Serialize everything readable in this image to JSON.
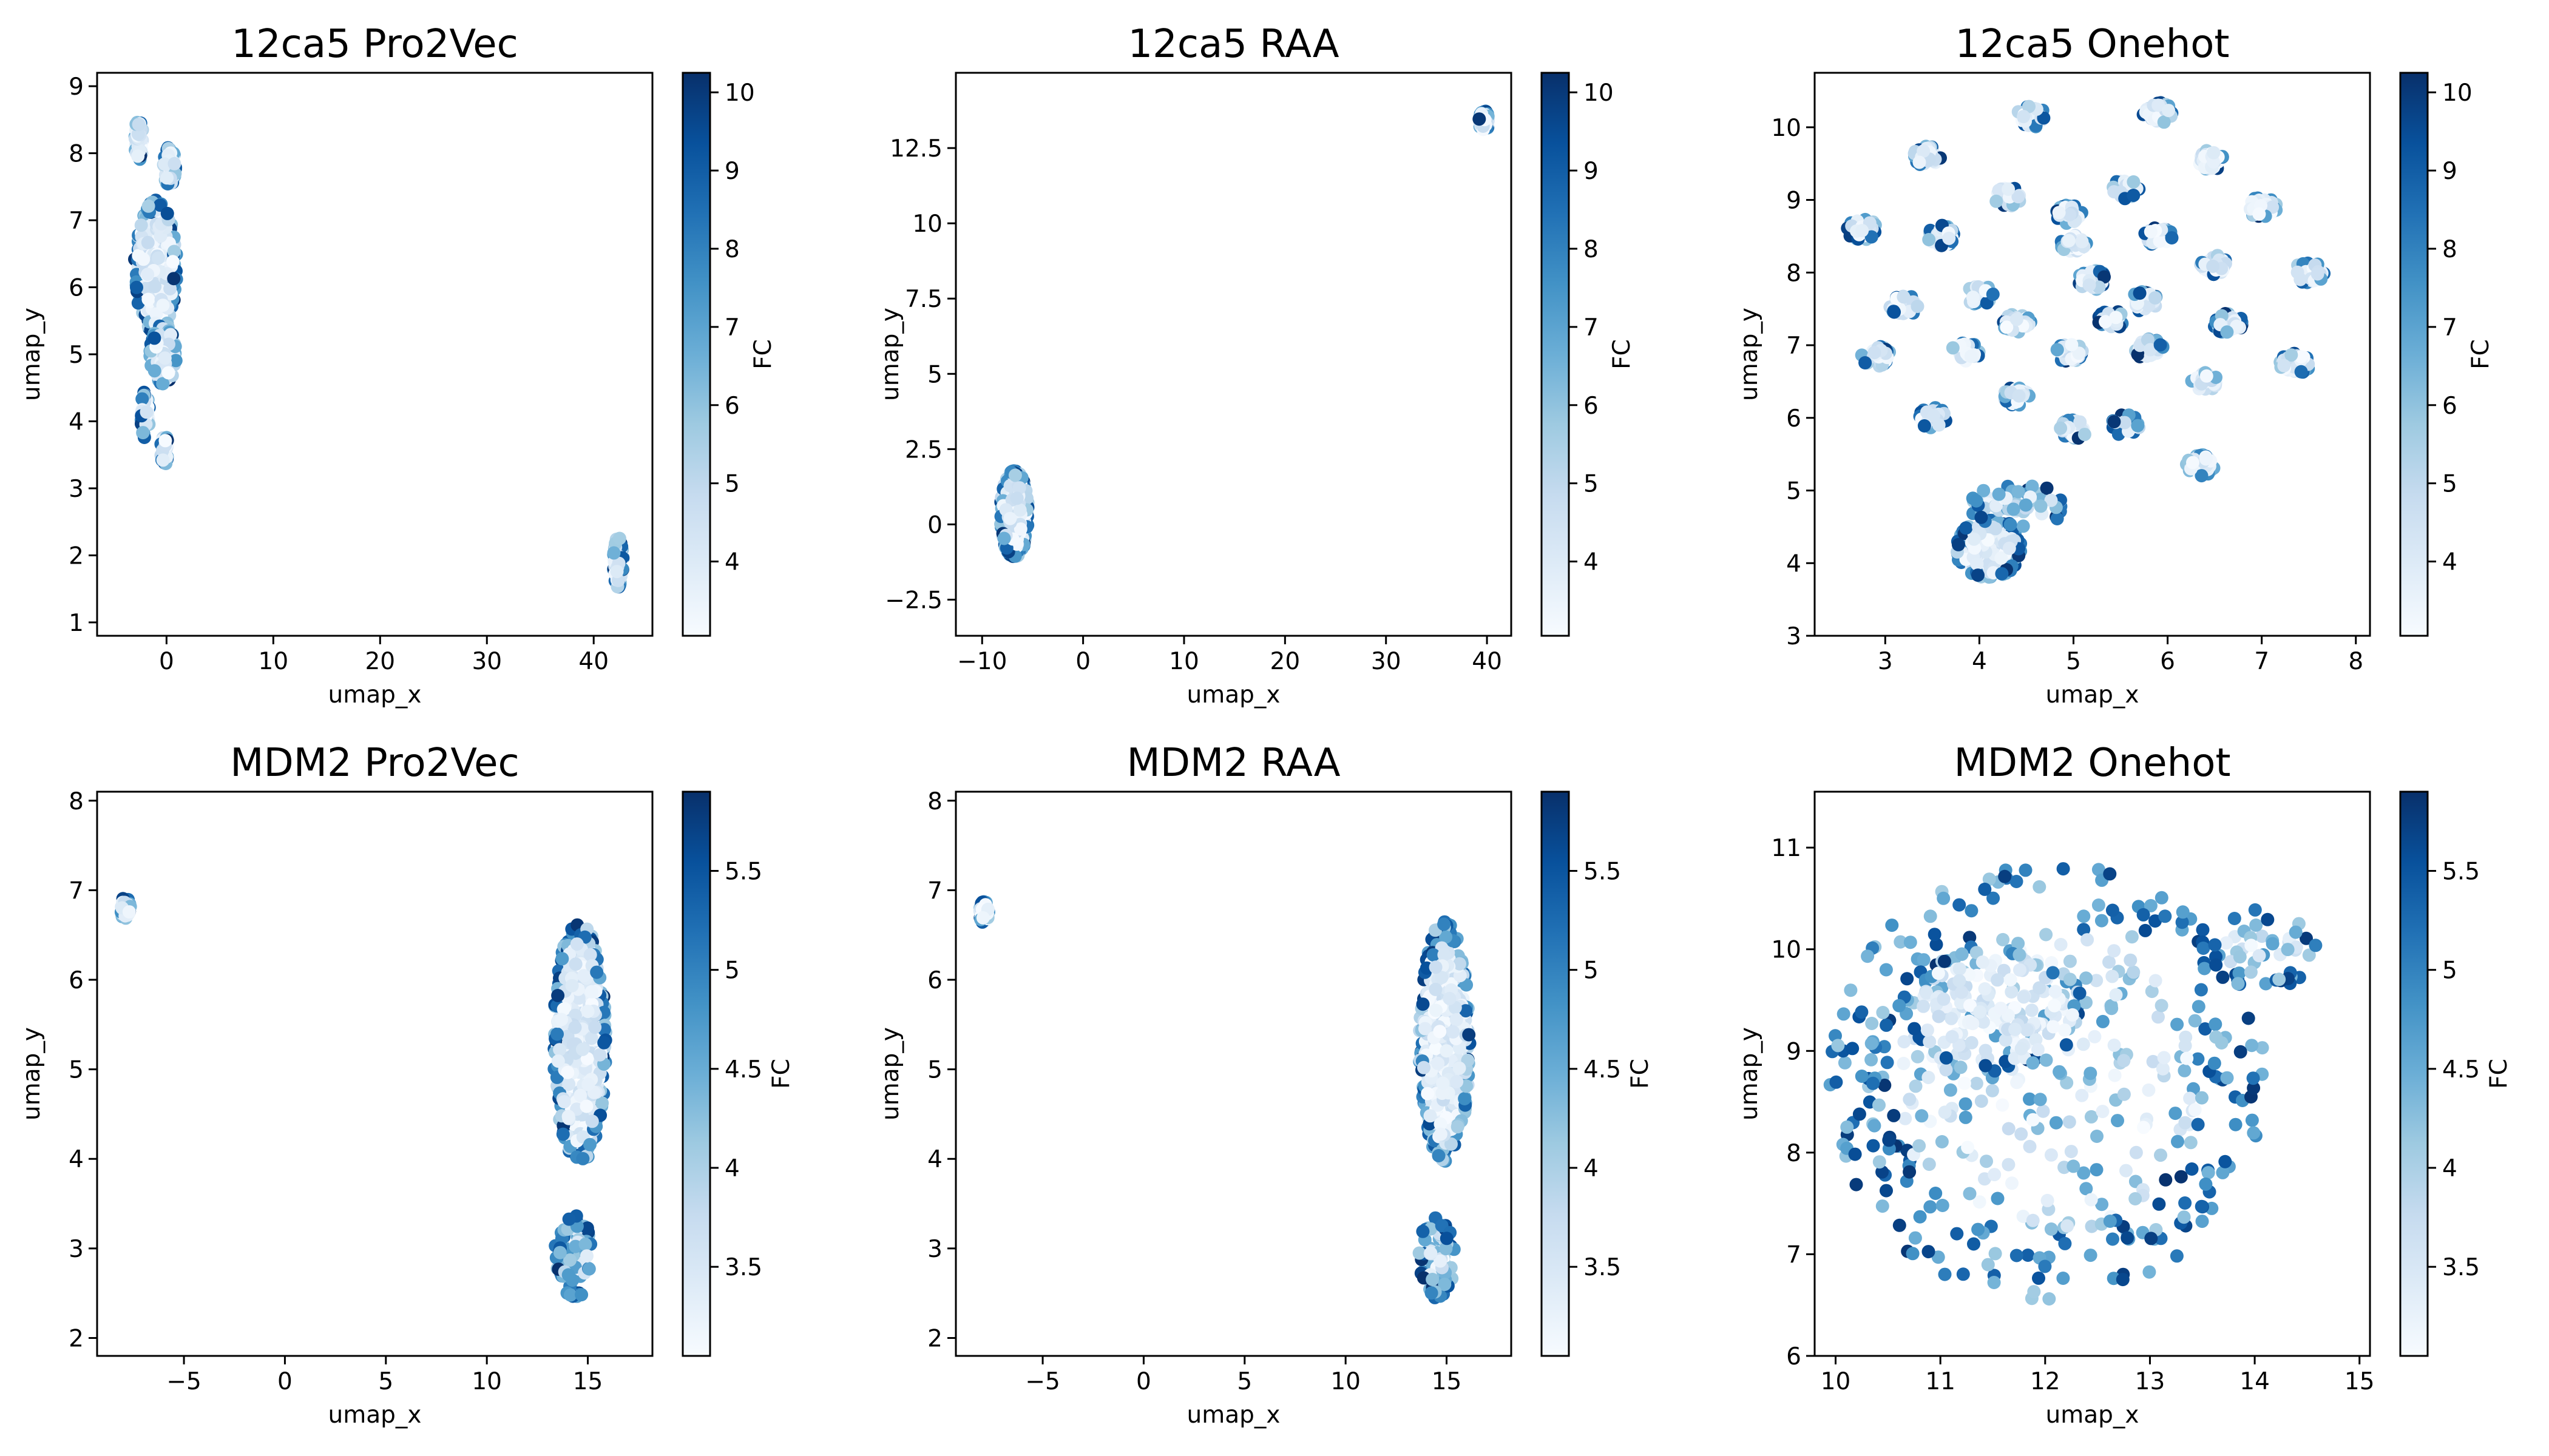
{
  "chart_data": [
    {
      "type": "scatter",
      "title": "12ca5 Pro2Vec",
      "xlabel": "umap_x",
      "ylabel": "umap_y",
      "xlim": [
        -6.5,
        45.5
      ],
      "ylim": [
        0.8,
        9.2
      ],
      "xticks": [
        0,
        10,
        20,
        30,
        40
      ],
      "yticks": [
        1,
        2,
        3,
        4,
        5,
        6,
        7,
        8,
        9
      ],
      "colorbar": {
        "label": "FC",
        "range": [
          3.05,
          10.25
        ],
        "ticks": [
          4,
          5,
          6,
          7,
          8,
          9,
          10
        ]
      },
      "clusters": [
        {
          "cx": -2.6,
          "cy": 8.2,
          "sx": 0.8,
          "sy": 0.6,
          "n": 60,
          "spread": "dense"
        },
        {
          "cx": 0.3,
          "cy": 7.8,
          "sx": 1.2,
          "sy": 0.6,
          "n": 80,
          "spread": "dense"
        },
        {
          "cx": -1.0,
          "cy": 6.3,
          "sx": 4.0,
          "sy": 2.0,
          "n": 300,
          "spread": "dense"
        },
        {
          "cx": -0.3,
          "cy": 5.0,
          "sx": 2.5,
          "sy": 0.9,
          "n": 120,
          "spread": "dense"
        },
        {
          "cx": -2.0,
          "cy": 4.1,
          "sx": 0.8,
          "sy": 0.7,
          "n": 50,
          "spread": "dense"
        },
        {
          "cx": -0.2,
          "cy": 3.6,
          "sx": 0.7,
          "sy": 0.5,
          "n": 40,
          "spread": "dense"
        },
        {
          "cx": 42.3,
          "cy": 1.9,
          "sx": 0.9,
          "sy": 0.75,
          "n": 90,
          "spread": "dense"
        }
      ]
    },
    {
      "type": "scatter",
      "title": "12ca5 RAA",
      "xlabel": "umap_x",
      "ylabel": "umap_y",
      "xlim": [
        -12.6,
        42.4
      ],
      "ylim": [
        -3.7,
        15.0
      ],
      "xticks": [
        -10,
        0,
        10,
        20,
        30,
        40
      ],
      "yticks": [
        -2.5,
        0.0,
        2.5,
        5.0,
        7.5,
        10.0,
        12.5
      ],
      "colorbar": {
        "label": "FC",
        "range": [
          3.05,
          10.25
        ],
        "ticks": [
          4,
          5,
          6,
          7,
          8,
          9,
          10
        ]
      },
      "clusters": [
        {
          "cx": -6.8,
          "cy": 0.35,
          "sx": 2.8,
          "sy": 2.9,
          "n": 320,
          "spread": "dense"
        },
        {
          "cx": 39.7,
          "cy": 13.4,
          "sx": 1.0,
          "sy": 0.7,
          "n": 60,
          "spread": "dense"
        }
      ]
    },
    {
      "type": "scatter",
      "title": "12ca5 Onehot",
      "xlabel": "umap_x",
      "ylabel": "umap_y",
      "xlim": [
        2.25,
        8.15
      ],
      "ylim": [
        3.0,
        10.75
      ],
      "xticks": [
        3,
        4,
        5,
        6,
        7,
        8
      ],
      "yticks": [
        3,
        4,
        5,
        6,
        7,
        8,
        9,
        10
      ],
      "colorbar": {
        "label": "FC",
        "range": [
          3.05,
          10.25
        ],
        "ticks": [
          4,
          5,
          6,
          7,
          8,
          9,
          10
        ]
      },
      "clusters": [
        {
          "cx": 4.55,
          "cy": 10.15,
          "sx": 0.3,
          "sy": 0.3,
          "n": 40,
          "spread": "dense"
        },
        {
          "cx": 5.9,
          "cy": 10.2,
          "sx": 0.32,
          "sy": 0.28,
          "n": 40,
          "spread": "dense"
        },
        {
          "cx": 3.45,
          "cy": 9.6,
          "sx": 0.3,
          "sy": 0.28,
          "n": 40,
          "spread": "dense"
        },
        {
          "cx": 6.45,
          "cy": 9.55,
          "sx": 0.3,
          "sy": 0.28,
          "n": 40,
          "spread": "dense"
        },
        {
          "cx": 2.75,
          "cy": 8.6,
          "sx": 0.32,
          "sy": 0.3,
          "n": 40,
          "spread": "dense"
        },
        {
          "cx": 4.3,
          "cy": 9.05,
          "sx": 0.3,
          "sy": 0.28,
          "n": 40,
          "spread": "dense"
        },
        {
          "cx": 5.55,
          "cy": 9.15,
          "sx": 0.3,
          "sy": 0.28,
          "n": 40,
          "spread": "dense"
        },
        {
          "cx": 7.0,
          "cy": 8.9,
          "sx": 0.32,
          "sy": 0.28,
          "n": 40,
          "spread": "dense"
        },
        {
          "cx": 3.6,
          "cy": 8.5,
          "sx": 0.3,
          "sy": 0.3,
          "n": 40,
          "spread": "dense"
        },
        {
          "cx": 4.95,
          "cy": 8.8,
          "sx": 0.3,
          "sy": 0.26,
          "n": 40,
          "spread": "dense"
        },
        {
          "cx": 5.0,
          "cy": 8.4,
          "sx": 0.28,
          "sy": 0.26,
          "n": 40,
          "spread": "dense"
        },
        {
          "cx": 5.9,
          "cy": 8.5,
          "sx": 0.3,
          "sy": 0.26,
          "n": 40,
          "spread": "dense"
        },
        {
          "cx": 5.2,
          "cy": 7.9,
          "sx": 0.3,
          "sy": 0.28,
          "n": 40,
          "spread": "dense"
        },
        {
          "cx": 6.5,
          "cy": 8.1,
          "sx": 0.32,
          "sy": 0.28,
          "n": 40,
          "spread": "dense"
        },
        {
          "cx": 7.5,
          "cy": 8.0,
          "sx": 0.34,
          "sy": 0.3,
          "n": 40,
          "spread": "dense"
        },
        {
          "cx": 3.2,
          "cy": 7.55,
          "sx": 0.32,
          "sy": 0.28,
          "n": 40,
          "spread": "dense"
        },
        {
          "cx": 4.0,
          "cy": 7.7,
          "sx": 0.3,
          "sy": 0.28,
          "n": 40,
          "spread": "dense"
        },
        {
          "cx": 5.75,
          "cy": 7.6,
          "sx": 0.3,
          "sy": 0.28,
          "n": 40,
          "spread": "dense"
        },
        {
          "cx": 4.4,
          "cy": 7.3,
          "sx": 0.3,
          "sy": 0.26,
          "n": 40,
          "spread": "dense"
        },
        {
          "cx": 5.4,
          "cy": 7.35,
          "sx": 0.28,
          "sy": 0.26,
          "n": 40,
          "spread": "dense"
        },
        {
          "cx": 6.65,
          "cy": 7.3,
          "sx": 0.32,
          "sy": 0.28,
          "n": 40,
          "spread": "dense"
        },
        {
          "cx": 2.9,
          "cy": 6.85,
          "sx": 0.32,
          "sy": 0.28,
          "n": 40,
          "spread": "dense"
        },
        {
          "cx": 3.85,
          "cy": 6.9,
          "sx": 0.3,
          "sy": 0.28,
          "n": 40,
          "spread": "dense"
        },
        {
          "cx": 4.95,
          "cy": 6.9,
          "sx": 0.3,
          "sy": 0.26,
          "n": 40,
          "spread": "dense"
        },
        {
          "cx": 5.8,
          "cy": 6.95,
          "sx": 0.32,
          "sy": 0.28,
          "n": 40,
          "spread": "dense"
        },
        {
          "cx": 7.35,
          "cy": 6.75,
          "sx": 0.34,
          "sy": 0.28,
          "n": 40,
          "spread": "dense"
        },
        {
          "cx": 6.4,
          "cy": 6.5,
          "sx": 0.3,
          "sy": 0.28,
          "n": 40,
          "spread": "dense"
        },
        {
          "cx": 3.5,
          "cy": 6.0,
          "sx": 0.3,
          "sy": 0.3,
          "n": 40,
          "spread": "dense"
        },
        {
          "cx": 4.4,
          "cy": 6.3,
          "sx": 0.28,
          "sy": 0.26,
          "n": 40,
          "spread": "dense"
        },
        {
          "cx": 5.0,
          "cy": 5.85,
          "sx": 0.3,
          "sy": 0.28,
          "n": 40,
          "spread": "dense"
        },
        {
          "cx": 5.55,
          "cy": 5.9,
          "sx": 0.3,
          "sy": 0.3,
          "n": 40,
          "spread": "dense"
        },
        {
          "cx": 6.35,
          "cy": 5.35,
          "sx": 0.3,
          "sy": 0.3,
          "n": 40,
          "spread": "dense"
        },
        {
          "cx": 4.1,
          "cy": 4.2,
          "sx": 0.7,
          "sy": 0.8,
          "n": 200,
          "spread": "dense"
        },
        {
          "cx": 4.4,
          "cy": 4.8,
          "sx": 1.1,
          "sy": 0.6,
          "n": 60,
          "spread": "sparse"
        }
      ]
    },
    {
      "type": "scatter",
      "title": "MDM2 Pro2Vec",
      "xlabel": "umap_x",
      "ylabel": "umap_y",
      "xlim": [
        -9.3,
        18.2
      ],
      "ylim": [
        1.8,
        8.1
      ],
      "xticks": [
        -5,
        0,
        5,
        10,
        15
      ],
      "yticks": [
        2,
        3,
        4,
        5,
        6,
        7,
        8
      ],
      "colorbar": {
        "label": "FC",
        "range": [
          3.05,
          5.9
        ],
        "ticks": [
          3.5,
          4.0,
          4.5,
          5.0,
          5.5
        ]
      },
      "clusters": [
        {
          "cx": -7.9,
          "cy": 6.8,
          "sx": 0.5,
          "sy": 0.25,
          "n": 30,
          "spread": "dense"
        },
        {
          "cx": 14.6,
          "cy": 5.3,
          "sx": 2.6,
          "sy": 2.7,
          "n": 500,
          "spread": "dense"
        },
        {
          "cx": 14.3,
          "cy": 2.9,
          "sx": 1.9,
          "sy": 0.95,
          "n": 80,
          "spread": "sparse"
        }
      ]
    },
    {
      "type": "scatter",
      "title": "MDM2 RAA",
      "xlabel": "umap_x",
      "ylabel": "umap_y",
      "xlim": [
        -9.3,
        18.2
      ],
      "ylim": [
        1.8,
        8.1
      ],
      "xticks": [
        -5,
        0,
        5,
        10,
        15
      ],
      "yticks": [
        2,
        3,
        4,
        5,
        6,
        7,
        8
      ],
      "colorbar": {
        "label": "FC",
        "range": [
          3.05,
          5.9
        ],
        "ticks": [
          3.5,
          4.0,
          4.5,
          5.0,
          5.5
        ]
      },
      "clusters": [
        {
          "cx": -7.9,
          "cy": 6.75,
          "sx": 0.5,
          "sy": 0.25,
          "n": 30,
          "spread": "dense"
        },
        {
          "cx": 14.9,
          "cy": 5.3,
          "sx": 2.5,
          "sy": 2.7,
          "n": 500,
          "spread": "dense"
        },
        {
          "cx": 14.5,
          "cy": 2.9,
          "sx": 1.8,
          "sy": 0.95,
          "n": 80,
          "spread": "sparse"
        }
      ]
    },
    {
      "type": "scatter",
      "title": "MDM2 Onehot",
      "xlabel": "umap_x",
      "ylabel": "umap_y",
      "xlim": [
        9.8,
        15.1
      ],
      "ylim": [
        6.0,
        11.55
      ],
      "xticks": [
        10,
        11,
        12,
        13,
        14,
        15
      ],
      "yticks": [
        6,
        7,
        8,
        9,
        10,
        11
      ],
      "colorbar": {
        "label": "FC",
        "range": [
          3.05,
          5.9
        ],
        "ticks": [
          3.5,
          4.0,
          4.5,
          5.0,
          5.5
        ]
      },
      "clusters": [
        {
          "cx": 12.0,
          "cy": 8.7,
          "sx": 4.2,
          "sy": 4.3,
          "n": 420,
          "spread": "sparse"
        },
        {
          "cx": 11.5,
          "cy": 9.4,
          "sx": 1.8,
          "sy": 1.2,
          "n": 160,
          "spread": "dense"
        },
        {
          "cx": 14.05,
          "cy": 10.0,
          "sx": 1.2,
          "sy": 0.8,
          "n": 50,
          "spread": "sparse"
        }
      ]
    }
  ]
}
